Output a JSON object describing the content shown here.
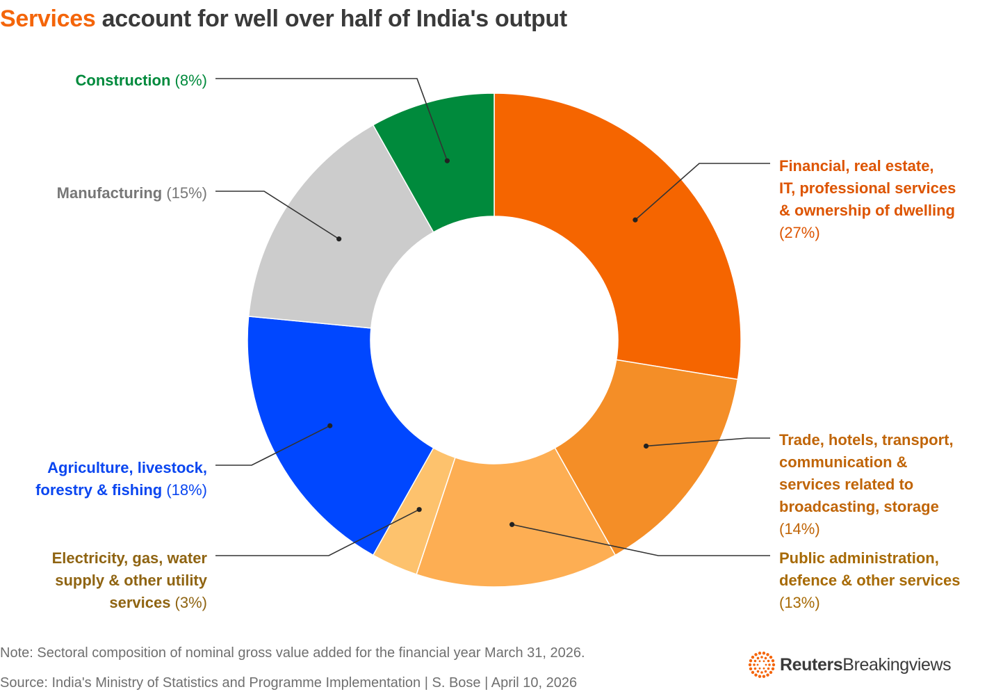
{
  "title": {
    "highlight": "Services",
    "rest": " account for well over half of India's output"
  },
  "chart_data": {
    "type": "pie",
    "subtype": "donut",
    "slices": [
      {
        "lines": [
          "Financial, real estate,",
          "IT, professional services",
          "& ownership of dwelling"
        ],
        "pct_label": "(27%)",
        "value": 27,
        "color": "#f56500",
        "text_color": "#dd5400"
      },
      {
        "lines": [
          "Trade, hotels, transport,",
          "communication &",
          "services related to",
          "broadcasting, storage"
        ],
        "pct_label": "(14%)",
        "value": 14,
        "color": "#f48e27",
        "text_color": "#c06508"
      },
      {
        "lines": [
          "Public administration,",
          "defence & other services"
        ],
        "pct_label": "(13%)",
        "value": 13,
        "color": "#fdae53",
        "text_color": "#a76a05"
      },
      {
        "lines": [
          "Electricity, gas, water",
          "supply & other utility",
          "services"
        ],
        "pct_label": "(3%)",
        "value": 3,
        "color": "#fdc26d",
        "text_color": "#8f6412"
      },
      {
        "lines": [
          "Agriculture, livestock,",
          "forestry & fishing"
        ],
        "pct_label": "(18%)",
        "value": 18,
        "color": "#0047ff",
        "text_color": "#0a46f0"
      },
      {
        "lines": [
          "Manufacturing"
        ],
        "pct_label": "(15%)",
        "value": 15,
        "color": "#cccccc",
        "text_color": "#777777"
      },
      {
        "lines": [
          "Construction"
        ],
        "pct_label": "(8%)",
        "value": 8,
        "color": "#008a3c",
        "text_color": "#008a3c"
      }
    ]
  },
  "footer": {
    "note": "Note: Sectoral composition of nominal gross value added for the financial year March 31, 2026.",
    "source": "Source: India's Ministry of Statistics and Programme Implementation | S. Bose | April 10, 2026"
  },
  "logo": {
    "name": "Reuters",
    "suffix": "Breakingviews",
    "icon": "reuters-dot-ring-icon",
    "color": "#f4650a"
  }
}
